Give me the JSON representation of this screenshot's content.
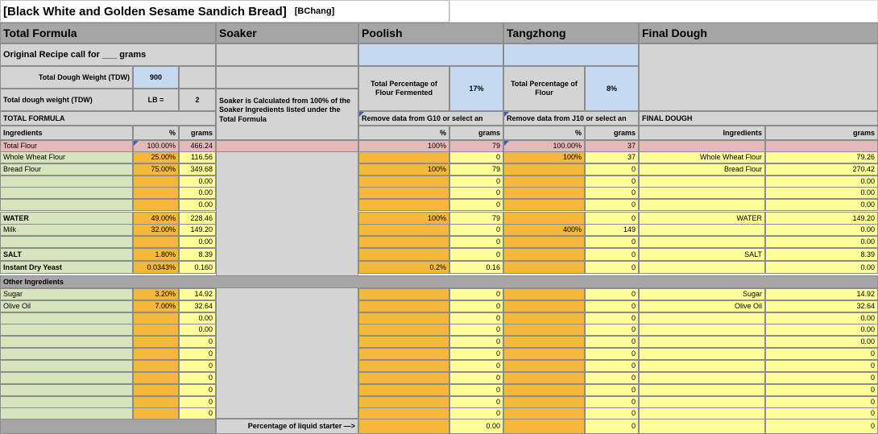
{
  "title": "[Black White and Golden Sesame Sandich Bread]",
  "author": "[BChang]",
  "sections": [
    "Total Formula",
    "Soaker",
    "Poolish",
    "Tangzhong",
    "Final Dough"
  ],
  "orig_recipe": "Original Recipe call for ___ grams",
  "tdw_label": "Total Dough Weight (TDW)",
  "tdw_value": "900",
  "tdw_lb_label": "Total dough weight (TDW)",
  "lb_label": "LB =",
  "lb_value": "2",
  "soaker_note": "Soaker is Calculated from 100% of the Soaker Ingredients listed under the Total Formula",
  "poolish_pct_label": "Total Percentage of Flour Fermented",
  "poolish_pct": "17%",
  "tang_pct_label": "Total Percentage of Flour",
  "tang_pct": "8%",
  "total_formula_hdr": "TOTAL FORMULA",
  "remove_g10": "Remove data from G10 or select an",
  "remove_j10": "Remove data from J10 or select an",
  "final_dough_hdr": "FINAL DOUGH",
  "col_ingredients": "Ingredients",
  "col_pct": "%",
  "col_grams": "grams",
  "other_ingredients": "Other Ingredients",
  "liquid_starter": "Percentage of liquid starter —>",
  "liquid_starter_value": "0.00",
  "rows": [
    {
      "name": "Total Flour",
      "pct": "100.00%",
      "grams": "466.24",
      "p_pct": "100%",
      "p_g": "79",
      "t_pct": "100.00%",
      "t_g": "37",
      "f_name": "",
      "f_g": ""
    },
    {
      "name": "Whole Wheat Flour",
      "pct": "25.00%",
      "grams": "116.56",
      "p_pct": "",
      "p_g": "0",
      "t_pct": "100%",
      "t_g": "37",
      "f_name": "Whole Wheat Flour",
      "f_g": "79.26"
    },
    {
      "name": "Bread Flour",
      "pct": "75.00%",
      "grams": "349.68",
      "p_pct": "100%",
      "p_g": "79",
      "t_pct": "",
      "t_g": "0",
      "f_name": "Bread Flour",
      "f_g": "270.42"
    },
    {
      "name": "",
      "pct": "",
      "grams": "0.00",
      "p_pct": "",
      "p_g": "0",
      "t_pct": "",
      "t_g": "0",
      "f_name": "",
      "f_g": "0.00"
    },
    {
      "name": "",
      "pct": "",
      "grams": "0.00",
      "p_pct": "",
      "p_g": "0",
      "t_pct": "",
      "t_g": "0",
      "f_name": "",
      "f_g": "0.00"
    },
    {
      "name": "",
      "pct": "",
      "grams": "0.00",
      "p_pct": "",
      "p_g": "0",
      "t_pct": "",
      "t_g": "0",
      "f_name": "",
      "f_g": "0.00"
    },
    {
      "name": "WATER",
      "pct": "49.00%",
      "grams": "228.46",
      "p_pct": "100%",
      "p_g": "79",
      "t_pct": "",
      "t_g": "0",
      "f_name": "WATER",
      "f_g": "149.20"
    },
    {
      "name": "Milk",
      "pct": "32.00%",
      "grams": "149.20",
      "p_pct": "",
      "p_g": "0",
      "t_pct": "400%",
      "t_g": "149",
      "f_name": "",
      "f_g": "0.00"
    },
    {
      "name": "",
      "pct": "",
      "grams": "0.00",
      "p_pct": "",
      "p_g": "0",
      "t_pct": "",
      "t_g": "0",
      "f_name": "",
      "f_g": "0.00"
    },
    {
      "name": "SALT",
      "pct": "1.80%",
      "grams": "8.39",
      "p_pct": "",
      "p_g": "0",
      "t_pct": "",
      "t_g": "0",
      "f_name": "SALT",
      "f_g": "8.39"
    },
    {
      "name": "Instant Dry Yeast",
      "pct": "0.0343%",
      "grams": "0.160",
      "p_pct": "0.2%",
      "p_g": "0.16",
      "t_pct": "",
      "t_g": "0",
      "f_name": "",
      "f_g": "0.00"
    },
    {
      "name": "Sugar",
      "pct": "3.20%",
      "grams": "14.92",
      "p_pct": "",
      "p_g": "0",
      "t_pct": "",
      "t_g": "0",
      "f_name": "Sugar",
      "f_g": "14.92"
    },
    {
      "name": "Olive Oil",
      "pct": "7.00%",
      "grams": "32.64",
      "p_pct": "",
      "p_g": "0",
      "t_pct": "",
      "t_g": "0",
      "f_name": "Olive Oil",
      "f_g": "32.64"
    },
    {
      "name": "",
      "pct": "",
      "grams": "0.00",
      "p_pct": "",
      "p_g": "0",
      "t_pct": "",
      "t_g": "0",
      "f_name": "",
      "f_g": "0.00"
    },
    {
      "name": "",
      "pct": "",
      "grams": "0.00",
      "p_pct": "",
      "p_g": "0",
      "t_pct": "",
      "t_g": "0",
      "f_name": "",
      "f_g": "0.00"
    },
    {
      "name": "",
      "pct": "",
      "grams": "0",
      "p_pct": "",
      "p_g": "0",
      "t_pct": "",
      "t_g": "0",
      "f_name": "",
      "f_g": "0.00"
    },
    {
      "name": "",
      "pct": "",
      "grams": "0",
      "p_pct": "",
      "p_g": "0",
      "t_pct": "",
      "t_g": "0",
      "f_name": "",
      "f_g": "0"
    },
    {
      "name": "",
      "pct": "",
      "grams": "0",
      "p_pct": "",
      "p_g": "0",
      "t_pct": "",
      "t_g": "0",
      "f_name": "",
      "f_g": "0"
    },
    {
      "name": "",
      "pct": "",
      "grams": "0",
      "p_pct": "",
      "p_g": "0",
      "t_pct": "",
      "t_g": "0",
      "f_name": "",
      "f_g": "0"
    },
    {
      "name": "",
      "pct": "",
      "grams": "0",
      "p_pct": "",
      "p_g": "0",
      "t_pct": "",
      "t_g": "0",
      "f_name": "",
      "f_g": "0"
    },
    {
      "name": "",
      "pct": "",
      "grams": "0",
      "p_pct": "",
      "p_g": "0",
      "t_pct": "",
      "t_g": "0",
      "f_name": "",
      "f_g": "0"
    },
    {
      "name": "",
      "pct": "",
      "grams": "0",
      "p_pct": "",
      "p_g": "0",
      "t_pct": "",
      "t_g": "0",
      "f_name": "",
      "f_g": "0"
    },
    {
      "name": "",
      "pct": "",
      "grams": "",
      "p_pct": "",
      "p_g": "0",
      "t_pct": "",
      "t_g": "0",
      "f_name": "",
      "f_g": "0"
    }
  ]
}
